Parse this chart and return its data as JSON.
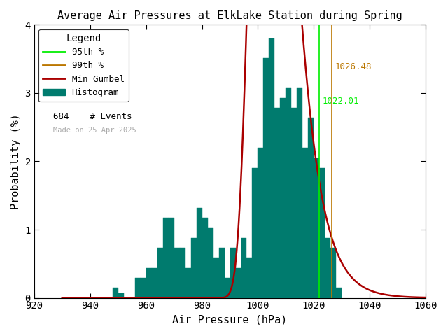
{
  "title": "Average Air Pressures at ElkLake Station during Spring",
  "xlabel": "Air Pressure (hPa)",
  "ylabel": "Probability (%)",
  "xlim": [
    920,
    1060
  ],
  "ylim": [
    0,
    4
  ],
  "xticks": [
    920,
    940,
    960,
    980,
    1000,
    1020,
    1040,
    1060
  ],
  "yticks": [
    0,
    1,
    2,
    3,
    4
  ],
  "n_events": 684,
  "pct95": 1022.01,
  "pct99": 1026.48,
  "pct95_color": "#00ee00",
  "pct99_color": "#bb7700",
  "pct95_label": "95th %",
  "pct99_label": "99th %",
  "gumbel_label": "Min Gumbel",
  "hist_label": "Histogram",
  "hist_color": "#007b6e",
  "gumbel_color": "#aa0000",
  "date_text": "Made on 25 Apr 2025",
  "bg_color": "#ffffff",
  "bin_width": 2,
  "hist_data": [
    [
      948,
      0.15
    ],
    [
      950,
      0.07
    ],
    [
      952,
      0.0
    ],
    [
      954,
      0.0
    ],
    [
      956,
      0.29
    ],
    [
      958,
      0.29
    ],
    [
      960,
      0.44
    ],
    [
      962,
      0.44
    ],
    [
      964,
      0.73
    ],
    [
      966,
      1.17
    ],
    [
      968,
      1.17
    ],
    [
      970,
      0.73
    ],
    [
      972,
      0.73
    ],
    [
      974,
      0.44
    ],
    [
      976,
      0.88
    ],
    [
      978,
      1.32
    ],
    [
      980,
      1.17
    ],
    [
      982,
      1.03
    ],
    [
      984,
      0.59
    ],
    [
      986,
      0.73
    ],
    [
      988,
      0.29
    ],
    [
      990,
      0.73
    ],
    [
      992,
      0.44
    ],
    [
      994,
      0.88
    ],
    [
      996,
      0.59
    ],
    [
      998,
      1.9
    ],
    [
      1000,
      2.2
    ],
    [
      1002,
      3.51
    ],
    [
      1004,
      3.8
    ],
    [
      1006,
      2.78
    ],
    [
      1008,
      2.93
    ],
    [
      1010,
      3.07
    ],
    [
      1012,
      2.78
    ],
    [
      1014,
      3.07
    ],
    [
      1016,
      2.2
    ],
    [
      1018,
      2.64
    ],
    [
      1020,
      2.05
    ],
    [
      1022,
      1.9
    ],
    [
      1024,
      0.88
    ],
    [
      1026,
      0.73
    ],
    [
      1028,
      0.15
    ],
    [
      1030,
      0.0
    ]
  ],
  "gumbel_mu": 1003.5,
  "gumbel_beta": 6.5,
  "font_family": "monospace"
}
